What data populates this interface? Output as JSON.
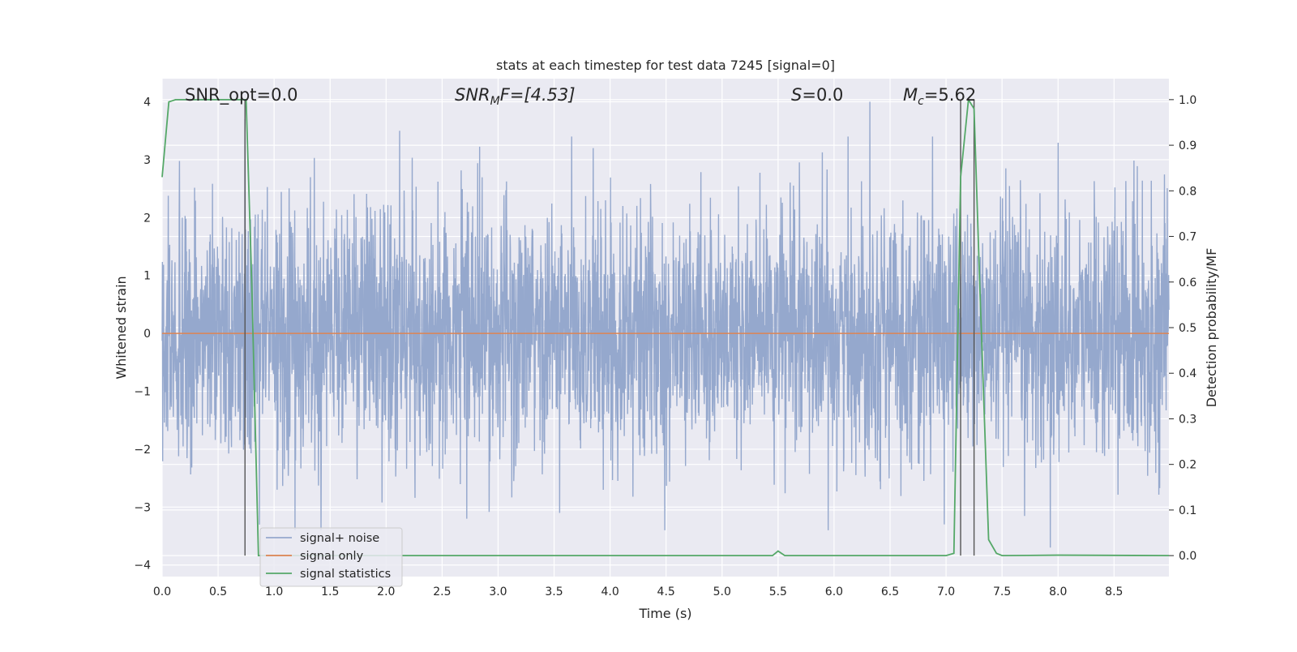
{
  "chart_data": {
    "type": "line",
    "title": "stats at each timestep for test data 7245 [signal=0]",
    "xlabel": "Time (s)",
    "ylabel": "Whitened strain",
    "ylabel_right": "Detection probability/MF",
    "xlim": [
      0.0,
      8.99
    ],
    "ylim": [
      -4.2,
      4.4
    ],
    "ylim_right": [
      -0.046,
      1.046
    ],
    "x_ticks": [
      "0.0",
      "0.5",
      "1.0",
      "1.5",
      "2.0",
      "2.5",
      "3.0",
      "3.5",
      "4.0",
      "4.5",
      "5.0",
      "5.5",
      "6.0",
      "6.5",
      "7.0",
      "7.5",
      "8.0",
      "8.5"
    ],
    "y_ticks": [
      "4",
      "3",
      "2",
      "1",
      "0",
      "−1",
      "−2",
      "−3",
      "−4"
    ],
    "y_right_ticks": [
      "1.0",
      "0.9",
      "0.8",
      "0.7",
      "0.6",
      "0.5",
      "0.4",
      "0.3",
      "0.2",
      "0.1",
      "0.0"
    ],
    "grid": true,
    "legend_position": "lower-left",
    "annotations": {
      "snr_opt": "SNR_opt=0.0",
      "snr_mf_main": "SNR",
      "snr_mf_sub": "M",
      "snr_mf_rest": "F=[4.53]",
      "s_main": "S",
      "s_rest": "=0.0",
      "mc_main": "M",
      "mc_sub": "c",
      "mc_rest": "=5.62"
    },
    "vertical_markers_s": [
      0.74,
      7.13,
      7.25
    ],
    "series": [
      {
        "name": "signal+ noise",
        "color": "#95a8cd",
        "axis": "left",
        "envelope": "gaussian noise, std ≈ 1.0, peaks between −3.7 and 4.0",
        "notable_peaks": [
          [
            0.74,
            3.7
          ],
          [
            2.12,
            3.5
          ],
          [
            3.85,
            3.2
          ],
          [
            6.32,
            4.0
          ],
          [
            7.93,
            -3.7
          ],
          [
            1.42,
            -3.4
          ],
          [
            2.72,
            -3.2
          ],
          [
            3.55,
            -3.1
          ]
        ]
      },
      {
        "name": "signal only",
        "color": "#dd8452",
        "axis": "left",
        "x": [
          0.0,
          8.99
        ],
        "y": [
          0.0,
          0.0
        ]
      },
      {
        "name": "signal statistics",
        "color": "#55a868",
        "axis": "right",
        "x": [
          0.0,
          0.06,
          0.12,
          0.5,
          0.72,
          0.75,
          0.8,
          0.86,
          0.9,
          1.0,
          5.45,
          5.5,
          5.56,
          6.0,
          6.5,
          7.0,
          7.07,
          7.13,
          7.2,
          7.25,
          7.3,
          7.38,
          7.45,
          7.5,
          8.0,
          8.99
        ],
        "y": [
          0.83,
          0.995,
          1.0,
          1.0,
          1.0,
          1.0,
          0.6,
          0.0,
          0.0,
          0.0,
          0.0,
          0.01,
          0.0,
          0.0,
          0.0,
          0.0,
          0.005,
          0.83,
          1.0,
          0.98,
          0.6,
          0.035,
          0.005,
          0.0,
          0.001,
          0.0
        ]
      }
    ]
  }
}
